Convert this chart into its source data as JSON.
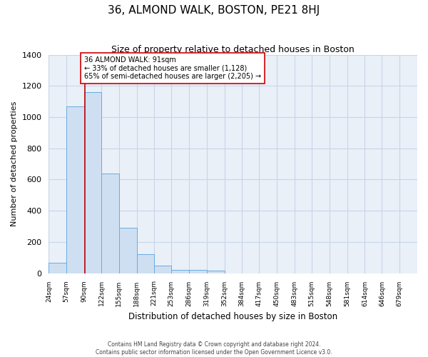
{
  "title": "36, ALMOND WALK, BOSTON, PE21 8HJ",
  "subtitle": "Size of property relative to detached houses in Boston",
  "xlabel": "Distribution of detached houses by size in Boston",
  "ylabel": "Number of detached properties",
  "bin_edges": [
    24,
    57,
    90,
    122,
    155,
    188,
    221,
    253,
    286,
    319,
    352,
    384,
    417,
    450,
    483,
    515,
    548,
    581,
    614,
    646,
    679
  ],
  "bar_heights": [
    65,
    1070,
    1160,
    640,
    290,
    120,
    50,
    20,
    20,
    15,
    0,
    0,
    0,
    0,
    0,
    0,
    0,
    0,
    0,
    0
  ],
  "bar_color": "#cfdff2",
  "bar_edgecolor": "#6aabe0",
  "property_size": 91,
  "annotation_line1": "36 ALMOND WALK: 91sqm",
  "annotation_line2": "← 33% of detached houses are smaller (1,128)",
  "annotation_line3": "65% of semi-detached houses are larger (2,205) →",
  "vline_color": "#cc0000",
  "ylim": [
    0,
    1400
  ],
  "yticks": [
    0,
    200,
    400,
    600,
    800,
    1000,
    1200,
    1400
  ],
  "grid_color": "#c8d4e8",
  "background_color": "#eaf0f8",
  "footer_line1": "Contains HM Land Registry data © Crown copyright and database right 2024.",
  "footer_line2": "Contains public sector information licensed under the Open Government Licence v3.0.",
  "annotation_box_edgecolor": "#cc0000",
  "annotation_box_facecolor": "#ffffff",
  "bin_width": 33
}
